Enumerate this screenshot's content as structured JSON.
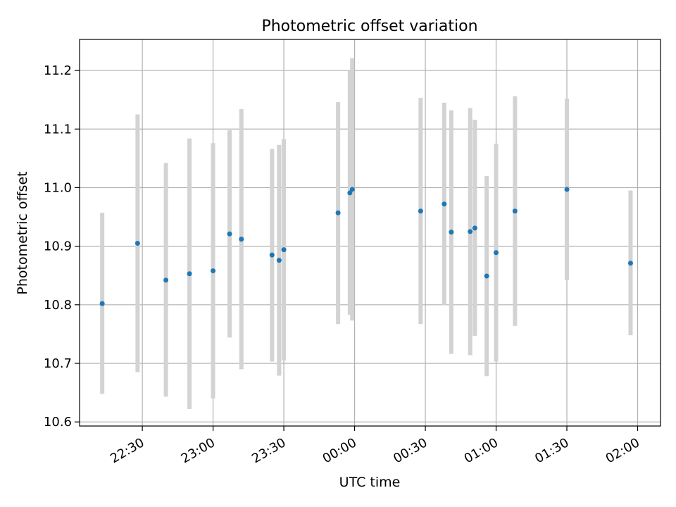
{
  "chart_data": {
    "type": "scatter",
    "title": "Photometric offset variation",
    "xlabel": "UTC time",
    "ylabel": "Photometric offset",
    "grid": true,
    "legend": "none",
    "x_axis": {
      "format": "HH:MM",
      "range": [
        "22:13",
        "02:08"
      ],
      "ticks": [
        "22:30",
        "23:00",
        "23:30",
        "00:00",
        "00:30",
        "01:00",
        "01:30",
        "02:00"
      ]
    },
    "y_axis": {
      "range": [
        10.593,
        11.253
      ],
      "ticks": [
        10.6,
        10.7,
        10.8,
        10.9,
        11.0,
        11.1,
        11.2
      ],
      "tick_labels": [
        "10.6",
        "10.7",
        "10.8",
        "10.9",
        "11.0",
        "11.1",
        "11.2"
      ]
    },
    "series": [
      {
        "marker_color": "#1f77b4",
        "errorbar_color": "#d3d3d3",
        "points": [
          {
            "t": "22:13",
            "y": 10.802,
            "lo": 10.648,
            "hi": 10.957
          },
          {
            "t": "22:28",
            "y": 10.905,
            "lo": 10.685,
            "hi": 11.125
          },
          {
            "t": "22:40",
            "y": 10.842,
            "lo": 10.643,
            "hi": 11.042
          },
          {
            "t": "22:50",
            "y": 10.853,
            "lo": 10.622,
            "hi": 11.084
          },
          {
            "t": "23:00",
            "y": 10.858,
            "lo": 10.64,
            "hi": 11.076
          },
          {
            "t": "23:07",
            "y": 10.921,
            "lo": 10.744,
            "hi": 11.098
          },
          {
            "t": "23:12",
            "y": 10.912,
            "lo": 10.69,
            "hi": 11.134
          },
          {
            "t": "23:25",
            "y": 10.885,
            "lo": 10.703,
            "hi": 11.066
          },
          {
            "t": "23:28",
            "y": 10.876,
            "lo": 10.679,
            "hi": 11.073
          },
          {
            "t": "23:30",
            "y": 10.894,
            "lo": 10.705,
            "hi": 11.083
          },
          {
            "t": "23:53",
            "y": 10.957,
            "lo": 10.767,
            "hi": 11.146
          },
          {
            "t": "23:58",
            "y": 10.991,
            "lo": 10.783,
            "hi": 11.2
          },
          {
            "t": "23:59",
            "y": 10.997,
            "lo": 10.773,
            "hi": 11.221
          },
          {
            "t": "00:28",
            "y": 10.96,
            "lo": 10.767,
            "hi": 11.153
          },
          {
            "t": "00:38",
            "y": 10.972,
            "lo": 10.799,
            "hi": 11.145
          },
          {
            "t": "00:41",
            "y": 10.924,
            "lo": 10.716,
            "hi": 11.132
          },
          {
            "t": "00:49",
            "y": 10.925,
            "lo": 10.714,
            "hi": 11.136
          },
          {
            "t": "00:51",
            "y": 10.931,
            "lo": 10.747,
            "hi": 11.116
          },
          {
            "t": "00:56",
            "y": 10.849,
            "lo": 10.678,
            "hi": 11.02
          },
          {
            "t": "01:00",
            "y": 10.889,
            "lo": 10.703,
            "hi": 11.075
          },
          {
            "t": "01:08",
            "y": 10.96,
            "lo": 10.764,
            "hi": 11.156
          },
          {
            "t": "01:30",
            "y": 10.997,
            "lo": 10.842,
            "hi": 11.152
          },
          {
            "t": "01:57",
            "y": 10.871,
            "lo": 10.748,
            "hi": 10.995
          }
        ]
      }
    ]
  }
}
